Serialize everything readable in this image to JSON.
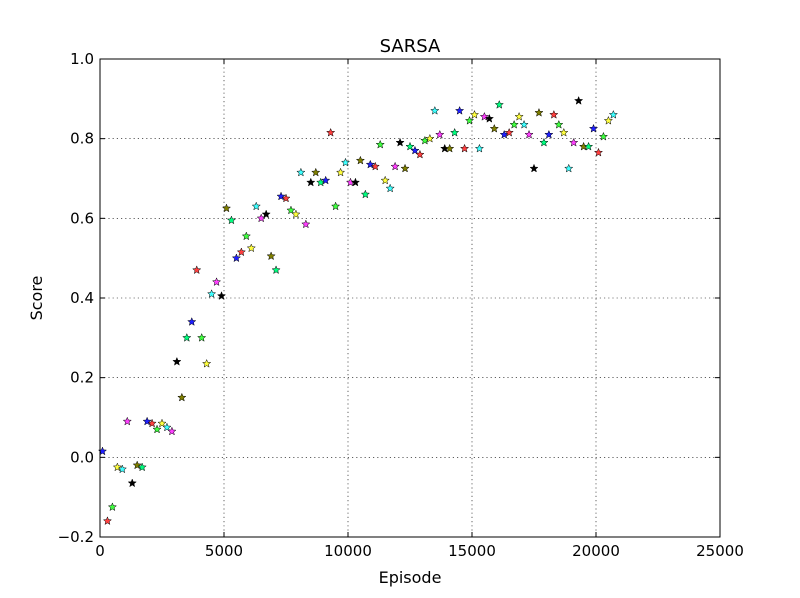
{
  "chart_data": {
    "type": "scatter",
    "title": "SARSA",
    "xlabel": "Episode",
    "ylabel": "Score",
    "xlim": [
      0,
      25000
    ],
    "ylim": [
      -0.2,
      1.0
    ],
    "grid": true,
    "marker": "star",
    "xticks": [
      0,
      5000,
      10000,
      15000,
      20000,
      25000
    ],
    "xtick_labels": [
      "0",
      "5000",
      "10000",
      "15000",
      "20000",
      "25000"
    ],
    "yticks": [
      -0.2,
      0.0,
      0.2,
      0.4,
      0.6,
      0.8,
      1.0
    ],
    "ytick_labels": [
      "−0.2",
      "0.0",
      "0.2",
      "0.4",
      "0.6",
      "0.8",
      "1.0"
    ],
    "marker_colors": [
      "#1f1fff",
      "#ff3f3f",
      "#3fff3f",
      "#ffff3f",
      "#3fffff",
      "#ff3fff",
      "#000000",
      "#7f7f00",
      "#00ff7f"
    ],
    "series": [
      {
        "points": [
          [
            100,
            0.015
          ],
          [
            300,
            -0.16
          ],
          [
            500,
            -0.125
          ],
          [
            700,
            -0.025
          ],
          [
            900,
            -0.03
          ],
          [
            1100,
            0.09
          ],
          [
            1300,
            -0.065
          ],
          [
            1500,
            -0.02
          ],
          [
            1700,
            -0.025
          ],
          [
            1900,
            0.09
          ],
          [
            2100,
            0.085
          ],
          [
            2300,
            0.07
          ],
          [
            2500,
            0.085
          ],
          [
            2700,
            0.075
          ],
          [
            2900,
            0.065
          ],
          [
            3100,
            0.24
          ],
          [
            3300,
            0.15
          ],
          [
            3500,
            0.3
          ],
          [
            3700,
            0.34
          ],
          [
            3900,
            0.47
          ],
          [
            4100,
            0.3
          ],
          [
            4300,
            0.235
          ],
          [
            4500,
            0.41
          ],
          [
            4700,
            0.44
          ],
          [
            4900,
            0.405
          ],
          [
            5100,
            0.625
          ],
          [
            5300,
            0.595
          ],
          [
            5500,
            0.5
          ],
          [
            5700,
            0.515
          ],
          [
            5900,
            0.555
          ],
          [
            6100,
            0.525
          ],
          [
            6300,
            0.63
          ],
          [
            6500,
            0.6
          ],
          [
            6700,
            0.61
          ],
          [
            6900,
            0.505
          ],
          [
            7100,
            0.47
          ],
          [
            7300,
            0.655
          ],
          [
            7500,
            0.65
          ],
          [
            7700,
            0.62
          ],
          [
            7900,
            0.61
          ],
          [
            8100,
            0.715
          ],
          [
            8300,
            0.585
          ],
          [
            8500,
            0.69
          ],
          [
            8700,
            0.715
          ],
          [
            8900,
            0.69
          ],
          [
            9100,
            0.695
          ],
          [
            9300,
            0.815
          ],
          [
            9500,
            0.63
          ],
          [
            9700,
            0.715
          ],
          [
            9900,
            0.74
          ],
          [
            10100,
            0.69
          ],
          [
            10300,
            0.69
          ],
          [
            10500,
            0.745
          ],
          [
            10700,
            0.66
          ],
          [
            10900,
            0.735
          ],
          [
            11100,
            0.73
          ],
          [
            11300,
            0.785
          ],
          [
            11500,
            0.695
          ],
          [
            11700,
            0.675
          ],
          [
            11900,
            0.73
          ],
          [
            12100,
            0.79
          ],
          [
            12300,
            0.725
          ],
          [
            12500,
            0.78
          ],
          [
            12700,
            0.77
          ],
          [
            12900,
            0.76
          ],
          [
            13100,
            0.795
          ],
          [
            13300,
            0.8
          ],
          [
            13500,
            0.87
          ],
          [
            13700,
            0.81
          ],
          [
            13900,
            0.775
          ],
          [
            14100,
            0.775
          ],
          [
            14300,
            0.815
          ],
          [
            14500,
            0.87
          ],
          [
            14700,
            0.775
          ],
          [
            14900,
            0.845
          ],
          [
            15100,
            0.86
          ],
          [
            15300,
            0.775
          ],
          [
            15500,
            0.855
          ],
          [
            15700,
            0.85
          ],
          [
            15900,
            0.825
          ],
          [
            16100,
            0.885
          ],
          [
            16300,
            0.81
          ],
          [
            16500,
            0.815
          ],
          [
            16700,
            0.835
          ],
          [
            16900,
            0.855
          ],
          [
            17100,
            0.835
          ],
          [
            17300,
            0.81
          ],
          [
            17500,
            0.725
          ],
          [
            17700,
            0.865
          ],
          [
            17900,
            0.79
          ],
          [
            18100,
            0.81
          ],
          [
            18300,
            0.86
          ],
          [
            18500,
            0.835
          ],
          [
            18700,
            0.815
          ],
          [
            18900,
            0.725
          ],
          [
            19100,
            0.79
          ],
          [
            19300,
            0.895
          ],
          [
            19500,
            0.78
          ],
          [
            19700,
            0.78
          ],
          [
            19900,
            0.825
          ],
          [
            20100,
            0.765
          ],
          [
            20300,
            0.805
          ],
          [
            20500,
            0.845
          ],
          [
            20700,
            0.86
          ]
        ]
      }
    ]
  }
}
